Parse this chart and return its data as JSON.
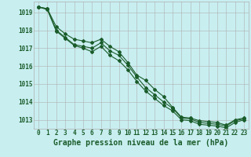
{
  "title": "Graphe pression niveau de la mer (hPa)",
  "background_color": "#c8eef0",
  "grid_color": "#b0b0b0",
  "line_color": "#1a5c2a",
  "x_values": [
    0,
    1,
    2,
    3,
    4,
    5,
    6,
    7,
    8,
    9,
    10,
    11,
    12,
    13,
    14,
    15,
    16,
    17,
    18,
    19,
    20,
    21,
    22,
    23
  ],
  "series": [
    [
      1019.3,
      1019.2,
      1018.0,
      1017.6,
      1017.2,
      1017.1,
      1017.0,
      1017.3,
      1016.85,
      1016.6,
      1016.05,
      1015.4,
      1014.8,
      1014.4,
      1014.0,
      1013.65,
      1013.1,
      1013.05,
      1012.85,
      1012.8,
      1012.75,
      1012.65,
      1012.95,
      1013.05
    ],
    [
      1019.3,
      1019.2,
      1018.2,
      1017.8,
      1017.5,
      1017.4,
      1017.3,
      1017.5,
      1017.1,
      1016.8,
      1016.2,
      1015.5,
      1015.2,
      1014.7,
      1014.3,
      1013.7,
      1013.15,
      1013.1,
      1012.95,
      1012.9,
      1012.85,
      1012.7,
      1013.0,
      1013.1
    ],
    [
      1019.3,
      1019.15,
      1017.95,
      1017.55,
      1017.15,
      1017.0,
      1016.8,
      1017.1,
      1016.6,
      1016.3,
      1015.8,
      1015.15,
      1014.6,
      1014.2,
      1013.8,
      1013.5,
      1013.0,
      1012.95,
      1012.75,
      1012.7,
      1012.65,
      1012.55,
      1012.85,
      1013.0
    ]
  ],
  "ylim": [
    1012.5,
    1019.6
  ],
  "xlim": [
    -0.5,
    23.5
  ],
  "yticks": [
    1013,
    1014,
    1015,
    1016,
    1017,
    1018,
    1019
  ],
  "xticks": [
    0,
    1,
    2,
    3,
    4,
    5,
    6,
    7,
    8,
    9,
    10,
    11,
    12,
    13,
    14,
    15,
    16,
    17,
    18,
    19,
    20,
    21,
    22,
    23
  ],
  "marker": "D",
  "marker_size": 2.0,
  "linewidth": 0.8,
  "title_fontsize": 7,
  "tick_fontsize": 5.5
}
